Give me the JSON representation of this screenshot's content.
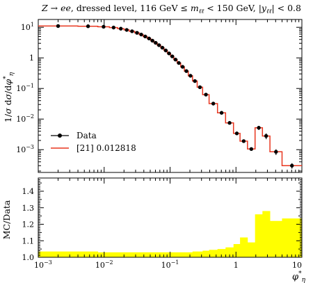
{
  "chart_data": [
    {
      "type": "line",
      "title": "Z → ee, dressed level, 116 GeV ≤ m_ℓℓ < 150 GeV, |y_ℓℓ| < 0.8",
      "ylabel": "1/σ dσ/dφ*_η",
      "xscale": "log",
      "yscale": "log",
      "xlim": [
        0.001,
        10
      ],
      "ylim": [
        0.00018,
        18
      ],
      "x_ticks": [
        "10^-3",
        "10^-2",
        "10^-1",
        "1",
        "10"
      ],
      "y_ticks": [
        "10^-3",
        "10^-2",
        "10^-1",
        "1",
        "10^1"
      ],
      "legend": {
        "position": "bottom-left",
        "data_label": "Data",
        "mc_label": "[21] 0.012818"
      },
      "bin_edges": [
        0.001,
        0.004,
        0.008,
        0.012,
        0.016,
        0.02,
        0.024,
        0.029,
        0.034,
        0.039,
        0.045,
        0.051,
        0.057,
        0.064,
        0.072,
        0.081,
        0.091,
        0.102,
        0.114,
        0.128,
        0.145,
        0.165,
        0.189,
        0.219,
        0.258,
        0.312,
        0.391,
        0.524,
        0.695,
        0.918,
        1.153,
        1.496,
        1.947,
        2.522,
        3.277,
        5.0,
        10.0
      ],
      "series": [
        {
          "name": "Data",
          "style": "points",
          "x": [
            0.002,
            0.0057,
            0.0098,
            0.0139,
            0.0179,
            0.022,
            0.0265,
            0.0315,
            0.0365,
            0.042,
            0.048,
            0.054,
            0.0605,
            0.068,
            0.0765,
            0.086,
            0.0965,
            0.108,
            0.121,
            0.136,
            0.155,
            0.177,
            0.204,
            0.238,
            0.284,
            0.35,
            0.453,
            0.605,
            0.8,
            1.03,
            1.31,
            1.71,
            2.22,
            2.87,
            4.05,
            7.07
          ],
          "y": [
            11.0,
            10.8,
            10.4,
            9.8,
            9.0,
            8.2,
            7.4,
            6.6,
            5.8,
            5.0,
            4.3,
            3.65,
            3.1,
            2.6,
            2.15,
            1.75,
            1.4,
            1.12,
            0.88,
            0.68,
            0.51,
            0.37,
            0.26,
            0.175,
            0.11,
            0.063,
            0.032,
            0.016,
            0.0075,
            0.0034,
            0.0019,
            0.00105,
            0.0052,
            0.0028,
            0.00085,
            0.0003
          ],
          "yerr_lo": [
            0.3,
            0.3,
            0.3,
            0.3,
            0.3,
            0.2,
            0.2,
            0.2,
            0.2,
            0.15,
            0.12,
            0.1,
            0.1,
            0.08,
            0.07,
            0.06,
            0.05,
            0.04,
            0.03,
            0.025,
            0.02,
            0.014,
            0.01,
            0.007,
            0.005,
            0.003,
            0.0016,
            0.0009,
            0.0005,
            0.0003,
            0.0002,
            0.00012,
            0.0008,
            0.0006,
            0.00018,
            6e-05
          ],
          "yerr_hi": [
            0.3,
            0.3,
            0.3,
            0.3,
            0.3,
            0.2,
            0.2,
            0.2,
            0.2,
            0.15,
            0.12,
            0.1,
            0.1,
            0.08,
            0.07,
            0.06,
            0.05,
            0.04,
            0.03,
            0.025,
            0.02,
            0.014,
            0.01,
            0.007,
            0.005,
            0.003,
            0.0016,
            0.0009,
            0.0005,
            0.0003,
            0.0002,
            0.00012,
            0.0008,
            0.0006,
            0.00018,
            6e-05
          ],
          "color": "#000000"
        },
        {
          "name": "[21] 0.012818",
          "style": "histogram",
          "values": [
            11.0,
            10.8,
            10.4,
            9.8,
            9.0,
            8.2,
            7.4,
            6.6,
            5.8,
            5.0,
            4.3,
            3.65,
            3.1,
            2.6,
            2.15,
            1.75,
            1.4,
            1.12,
            0.88,
            0.68,
            0.51,
            0.37,
            0.26,
            0.175,
            0.11,
            0.063,
            0.032,
            0.016,
            0.0075,
            0.0034,
            0.0019,
            0.00105,
            0.0052,
            0.0028,
            0.00085,
            0.0003
          ],
          "color": "#e8361f"
        }
      ]
    },
    {
      "type": "area",
      "ylabel": "MC/Data",
      "xlabel": "φ*_η",
      "xscale": "log",
      "xlim": [
        0.001,
        10
      ],
      "ylim": [
        1.0,
        1.48
      ],
      "x_ticks": [
        "10^-3",
        "10^-2",
        "10^-1",
        "1",
        "10"
      ],
      "y_ticks": [
        "1.0",
        "1.1",
        "1.2",
        "1.3",
        "1.4"
      ],
      "reference_line": 1.0,
      "fill_color": "#ffff00",
      "bin_edges": [
        0.001,
        0.004,
        0.008,
        0.012,
        0.016,
        0.02,
        0.024,
        0.029,
        0.034,
        0.039,
        0.045,
        0.051,
        0.057,
        0.064,
        0.072,
        0.081,
        0.091,
        0.102,
        0.114,
        0.128,
        0.145,
        0.165,
        0.189,
        0.219,
        0.258,
        0.312,
        0.391,
        0.524,
        0.695,
        0.918,
        1.153,
        1.496,
        1.947,
        2.522,
        3.277,
        5.0,
        10.0
      ],
      "band_upper": [
        1.035,
        1.035,
        1.03,
        1.03,
        1.03,
        1.03,
        1.03,
        1.03,
        1.03,
        1.03,
        1.03,
        1.03,
        1.03,
        1.03,
        1.03,
        1.03,
        1.03,
        1.03,
        1.03,
        1.03,
        1.03,
        1.03,
        1.03,
        1.035,
        1.035,
        1.04,
        1.045,
        1.05,
        1.06,
        1.08,
        1.12,
        1.09,
        1.26,
        1.28,
        1.22,
        1.235
      ],
      "band_lower": [
        1.0,
        1.0,
        1.0,
        1.0,
        1.0,
        1.0,
        1.0,
        1.0,
        1.0,
        1.0,
        1.0,
        1.0,
        1.0,
        1.0,
        1.0,
        1.0,
        1.0,
        1.0,
        1.0,
        1.0,
        1.0,
        1.0,
        1.0,
        1.0,
        1.0,
        1.0,
        1.0,
        1.0,
        1.0,
        1.0,
        1.0,
        1.0,
        1.0,
        1.0,
        1.0,
        1.0
      ]
    }
  ]
}
